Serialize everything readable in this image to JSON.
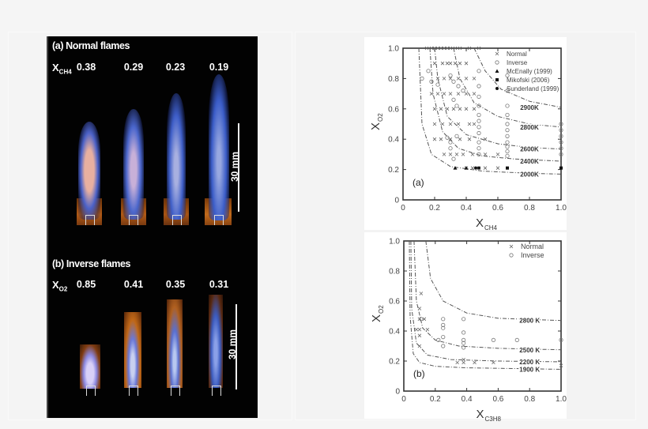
{
  "left_panel": {
    "section_a": {
      "title": "(a) Normal flames",
      "var_label": "X",
      "var_sub": "CH4",
      "values": [
        "0.38",
        "0.29",
        "0.23",
        "0.19"
      ],
      "scale_label": "30 mm"
    },
    "section_b": {
      "title": "(b) Inverse flames",
      "var_label": "X",
      "var_sub": "O2",
      "values": [
        "0.85",
        "0.41",
        "0.35",
        "0.31"
      ],
      "scale_label": "30 mm"
    }
  },
  "chart_data": [
    {
      "type": "scatter",
      "panel_label": "(a)",
      "title": "",
      "xlabel": "X_CH4",
      "ylabel": "X_O2",
      "xlim": [
        0,
        1.0
      ],
      "ylim": [
        0,
        1.0
      ],
      "xticks": [
        "0",
        "0.2",
        "0.4",
        "0.6",
        "0.8",
        "1.0"
      ],
      "yticks": [
        "0",
        "0.2",
        "0.4",
        "0.6",
        "0.8",
        "1.0"
      ],
      "grid": false,
      "legend_position": "upper right",
      "legend": [
        "Normal",
        "Inverse",
        "McEnally (1999)",
        "Mikofski (2006)",
        "Sunderland (1999)"
      ],
      "isotherms": [
        {
          "label": "2000K",
          "points": [
            [
              0.1,
              1.0
            ],
            [
              0.12,
              0.5
            ],
            [
              0.18,
              0.3
            ],
            [
              0.3,
              0.22
            ],
            [
              0.5,
              0.19
            ],
            [
              0.8,
              0.175
            ],
            [
              1.0,
              0.17
            ]
          ]
        },
        {
          "label": "2400K",
          "points": [
            [
              0.17,
              1.0
            ],
            [
              0.19,
              0.7
            ],
            [
              0.25,
              0.45
            ],
            [
              0.35,
              0.34
            ],
            [
              0.5,
              0.29
            ],
            [
              0.7,
              0.27
            ],
            [
              1.0,
              0.255
            ]
          ]
        },
        {
          "label": "2600K",
          "points": [
            [
              0.2,
              1.0
            ],
            [
              0.22,
              0.8
            ],
            [
              0.28,
              0.55
            ],
            [
              0.4,
              0.43
            ],
            [
              0.6,
              0.37
            ],
            [
              0.8,
              0.345
            ],
            [
              1.0,
              0.335
            ]
          ]
        },
        {
          "label": "2800K",
          "points": [
            [
              0.32,
              1.0
            ],
            [
              0.36,
              0.8
            ],
            [
              0.45,
              0.64
            ],
            [
              0.6,
              0.55
            ],
            [
              0.8,
              0.5
            ],
            [
              1.0,
              0.48
            ]
          ]
        },
        {
          "label": "2900K",
          "points": [
            [
              0.45,
              1.0
            ],
            [
              0.52,
              0.85
            ],
            [
              0.62,
              0.73
            ],
            [
              0.8,
              0.65
            ],
            [
              1.0,
              0.61
            ]
          ]
        }
      ],
      "series": [
        {
          "name": "Normal",
          "marker": "x",
          "points": [
            [
              0.15,
              1.0
            ],
            [
              0.18,
              1.0
            ],
            [
              0.2,
              1.0
            ],
            [
              0.22,
              1.0
            ],
            [
              0.24,
              1.0
            ],
            [
              0.26,
              1.0
            ],
            [
              0.28,
              1.0
            ],
            [
              0.3,
              1.0
            ],
            [
              0.33,
              1.0
            ],
            [
              0.36,
              1.0
            ],
            [
              0.42,
              1.0
            ],
            [
              0.48,
              1.0
            ],
            [
              0.2,
              0.9
            ],
            [
              0.25,
              0.9
            ],
            [
              0.28,
              0.9
            ],
            [
              0.3,
              0.9
            ],
            [
              0.33,
              0.9
            ],
            [
              0.36,
              0.9
            ],
            [
              0.4,
              0.9
            ],
            [
              0.22,
              0.8
            ],
            [
              0.26,
              0.8
            ],
            [
              0.3,
              0.8
            ],
            [
              0.35,
              0.8
            ],
            [
              0.4,
              0.8
            ],
            [
              0.45,
              0.8
            ],
            [
              0.18,
              0.7
            ],
            [
              0.22,
              0.7
            ],
            [
              0.26,
              0.7
            ],
            [
              0.3,
              0.7
            ],
            [
              0.35,
              0.7
            ],
            [
              0.4,
              0.7
            ],
            [
              0.45,
              0.7
            ],
            [
              0.2,
              0.6
            ],
            [
              0.24,
              0.6
            ],
            [
              0.28,
              0.6
            ],
            [
              0.32,
              0.6
            ],
            [
              0.36,
              0.6
            ],
            [
              0.4,
              0.6
            ],
            [
              0.45,
              0.6
            ],
            [
              0.2,
              0.5
            ],
            [
              0.25,
              0.5
            ],
            [
              0.3,
              0.5
            ],
            [
              0.35,
              0.5
            ],
            [
              0.42,
              0.5
            ],
            [
              0.45,
              0.5
            ],
            [
              0.2,
              0.4
            ],
            [
              0.24,
              0.4
            ],
            [
              0.3,
              0.4
            ],
            [
              0.36,
              0.4
            ],
            [
              0.42,
              0.4
            ],
            [
              0.52,
              0.4
            ],
            [
              0.26,
              0.3
            ],
            [
              0.3,
              0.3
            ],
            [
              0.34,
              0.3
            ],
            [
              0.38,
              0.3
            ],
            [
              0.44,
              0.3
            ],
            [
              0.52,
              0.3
            ],
            [
              0.6,
              0.3
            ],
            [
              0.4,
              0.21
            ],
            [
              0.44,
              0.21
            ],
            [
              0.48,
              0.21
            ],
            [
              0.52,
              0.21
            ],
            [
              0.6,
              0.21
            ]
          ]
        },
        {
          "name": "Inverse",
          "marker": "o",
          "points": [
            [
              0.12,
              0.8
            ],
            [
              0.16,
              0.85
            ],
            [
              0.18,
              0.78
            ],
            [
              0.22,
              0.76
            ],
            [
              0.3,
              0.82
            ],
            [
              0.32,
              0.78
            ],
            [
              0.35,
              0.75
            ],
            [
              0.38,
              0.72
            ],
            [
              0.32,
              0.66
            ],
            [
              0.34,
              0.62
            ],
            [
              0.48,
              0.85
            ],
            [
              0.48,
              0.75
            ],
            [
              0.48,
              0.68
            ],
            [
              0.48,
              0.62
            ],
            [
              0.48,
              0.56
            ],
            [
              0.48,
              0.52
            ],
            [
              0.48,
              0.48
            ],
            [
              0.48,
              0.44
            ],
            [
              0.48,
              0.38
            ],
            [
              0.48,
              0.34
            ],
            [
              0.48,
              0.3
            ],
            [
              0.66,
              0.82
            ],
            [
              0.66,
              0.72
            ],
            [
              0.66,
              0.62
            ],
            [
              0.66,
              0.56
            ],
            [
              0.66,
              0.5
            ],
            [
              0.66,
              0.46
            ],
            [
              0.66,
              0.42
            ],
            [
              0.66,
              0.38
            ],
            [
              0.66,
              0.35
            ],
            [
              0.66,
              0.32
            ],
            [
              0.66,
              0.29
            ],
            [
              1.0,
              0.5
            ],
            [
              1.0,
              0.46
            ],
            [
              1.0,
              0.42
            ],
            [
              1.0,
              0.38
            ],
            [
              1.0,
              0.34
            ],
            [
              1.0,
              0.3
            ],
            [
              0.28,
              0.41
            ],
            [
              0.3,
              0.38
            ],
            [
              0.3,
              0.34
            ],
            [
              0.32,
              0.27
            ],
            [
              0.34,
              0.42
            ]
          ]
        },
        {
          "name": "McEnally (1999)",
          "marker": "triangle",
          "points": [
            [
              0.33,
              0.21
            ],
            [
              0.4,
              0.21
            ]
          ]
        },
        {
          "name": "Mikofski (2006)",
          "marker": "square",
          "points": [
            [
              0.66,
              0.21
            ],
            [
              1.0,
              0.21
            ]
          ]
        },
        {
          "name": "Sunderland (1999)",
          "marker": "dot",
          "points": [
            [
              0.46,
              0.21
            ],
            [
              0.48,
              0.21
            ]
          ]
        }
      ]
    },
    {
      "type": "scatter",
      "panel_label": "(b)",
      "title": "",
      "xlabel": "X_C3H8",
      "ylabel": "X_O2",
      "xlim": [
        0,
        1.0
      ],
      "ylim": [
        0,
        1.0
      ],
      "xticks": [
        "0",
        "0.2",
        "0.4",
        "0.6",
        "0.8",
        "1.0"
      ],
      "yticks": [
        "0",
        "0.2",
        "0.4",
        "0.6",
        "0.8",
        "1.0"
      ],
      "grid": false,
      "legend_position": "upper right",
      "legend": [
        "Normal",
        "Inverse"
      ],
      "isotherms": [
        {
          "label": "1900 K",
          "points": [
            [
              0.035,
              1.0
            ],
            [
              0.04,
              0.5
            ],
            [
              0.06,
              0.25
            ],
            [
              0.1,
              0.19
            ],
            [
              0.2,
              0.165
            ],
            [
              0.4,
              0.155
            ],
            [
              0.7,
              0.15
            ],
            [
              1.0,
              0.145
            ]
          ]
        },
        {
          "label": "2200 K",
          "points": [
            [
              0.045,
              1.0
            ],
            [
              0.05,
              0.55
            ],
            [
              0.08,
              0.32
            ],
            [
              0.15,
              0.24
            ],
            [
              0.3,
              0.21
            ],
            [
              0.6,
              0.2
            ],
            [
              1.0,
              0.195
            ]
          ]
        },
        {
          "label": "2500 K",
          "points": [
            [
              0.065,
              1.0
            ],
            [
              0.08,
              0.6
            ],
            [
              0.12,
              0.42
            ],
            [
              0.2,
              0.34
            ],
            [
              0.35,
              0.3
            ],
            [
              0.6,
              0.285
            ],
            [
              1.0,
              0.275
            ]
          ]
        },
        {
          "label": "2800 K",
          "points": [
            [
              0.14,
              1.0
            ],
            [
              0.17,
              0.75
            ],
            [
              0.25,
              0.6
            ],
            [
              0.4,
              0.52
            ],
            [
              0.6,
              0.485
            ],
            [
              1.0,
              0.47
            ]
          ]
        }
      ],
      "series": [
        {
          "name": "Normal",
          "marker": "x",
          "points": [
            [
              0.11,
              0.65
            ],
            [
              0.1,
              0.55
            ],
            [
              0.1,
              0.48
            ],
            [
              0.13,
              0.48
            ],
            [
              0.08,
              0.41
            ],
            [
              0.1,
              0.41
            ],
            [
              0.15,
              0.41
            ],
            [
              0.1,
              0.37
            ],
            [
              0.1,
              0.3
            ],
            [
              0.38,
              0.21
            ],
            [
              0.34,
              0.19
            ],
            [
              0.38,
              0.19
            ],
            [
              0.45,
              0.19
            ],
            [
              0.57,
              0.19
            ],
            [
              1.0,
              0.17
            ]
          ]
        },
        {
          "name": "Inverse",
          "marker": "o",
          "points": [
            [
              0.11,
              0.48
            ],
            [
              0.25,
              0.48
            ],
            [
              0.38,
              0.48
            ],
            [
              0.25,
              0.44
            ],
            [
              0.25,
              0.42
            ],
            [
              0.25,
              0.36
            ],
            [
              0.22,
              0.34
            ],
            [
              0.25,
              0.3
            ],
            [
              0.38,
              0.39
            ],
            [
              0.38,
              0.34
            ],
            [
              0.38,
              0.32
            ],
            [
              0.38,
              0.29
            ],
            [
              0.57,
              0.34
            ],
            [
              0.72,
              0.34
            ],
            [
              1.0,
              0.34
            ]
          ]
        }
      ]
    }
  ]
}
